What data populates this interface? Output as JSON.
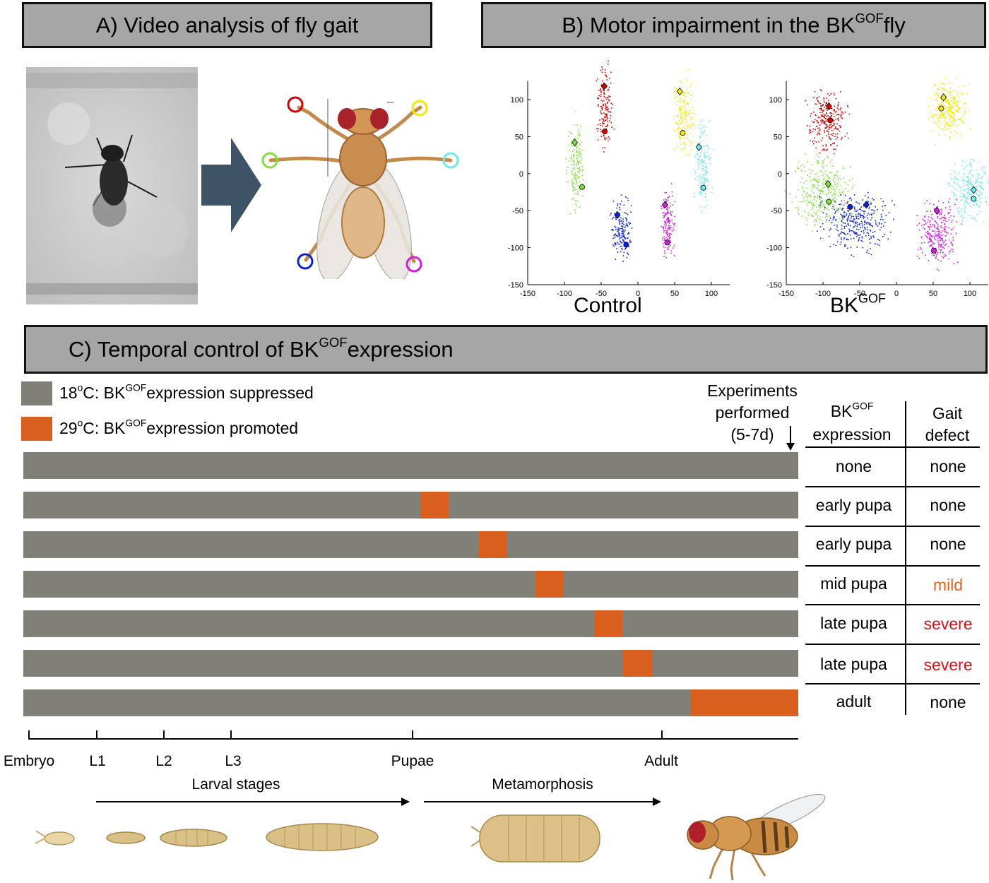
{
  "panel_a": {
    "title": "A) Video analysis of fly gait"
  },
  "panel_b": {
    "title_prefix": "B) Motor impairment in the BK",
    "title_sup": "GOF",
    "title_suffix": "fly",
    "plots": [
      {
        "label_main": "Control",
        "label_sup": ""
      },
      {
        "label_main": "BK",
        "label_sup": "GOF"
      }
    ],
    "x_ticks": [
      "-150",
      "-100",
      "-50",
      "0",
      "50",
      "100"
    ],
    "y_ticks": [
      "100",
      "50",
      "0",
      "-50",
      "-100",
      "-150"
    ],
    "colors": {
      "front_left": "#d40000",
      "front_right": "#f2e800",
      "mid_left": "#7ee03a",
      "mid_right": "#6fe8ec",
      "hind_left": "#0a1fd8",
      "hind_right": "#d21ce0"
    }
  },
  "panel_c": {
    "title_prefix": "C) Temporal control of BK",
    "title_sup": "GOF",
    "title_suffix": "expression",
    "legend": [
      {
        "temp": "18",
        "deg": "o",
        "prefix": "C: BK",
        "sup": "GOF",
        "text": "expression suppressed",
        "color": "#808078"
      },
      {
        "temp": "29",
        "deg": "o",
        "prefix": "C: BK",
        "sup": "GOF",
        "text": "expression promoted",
        "color": "#d95f1e"
      }
    ],
    "experiments_note": [
      "Experiments",
      "performed",
      "(5-7d)"
    ],
    "table_headers": {
      "expr_prefix": "BK",
      "expr_sup": "GOF",
      "expr_suffix": "expression",
      "gait": "Gait",
      "gait2": "defect"
    },
    "rows": [
      {
        "expression": "none",
        "defect": "none",
        "defect_color": "#000000"
      },
      {
        "expression": "early pupa",
        "defect": "none",
        "defect_color": "#000000"
      },
      {
        "expression": "early pupa",
        "defect": "none",
        "defect_color": "#000000"
      },
      {
        "expression": "mid pupa",
        "defect": "mild",
        "defect_color": "#e0631c"
      },
      {
        "expression": "late pupa",
        "defect": "severe",
        "defect_color": "#d3131b"
      },
      {
        "expression": "late pupa",
        "defect": "severe",
        "defect_color": "#d3131b"
      },
      {
        "expression": "adult",
        "defect": "none",
        "defect_color": "#000000"
      }
    ],
    "stages": [
      "Embryo",
      "L1",
      "L2",
      "L3",
      "Pupae",
      "Adult"
    ],
    "larval_label": "Larval stages",
    "meta_label": "Metamorphosis"
  }
}
